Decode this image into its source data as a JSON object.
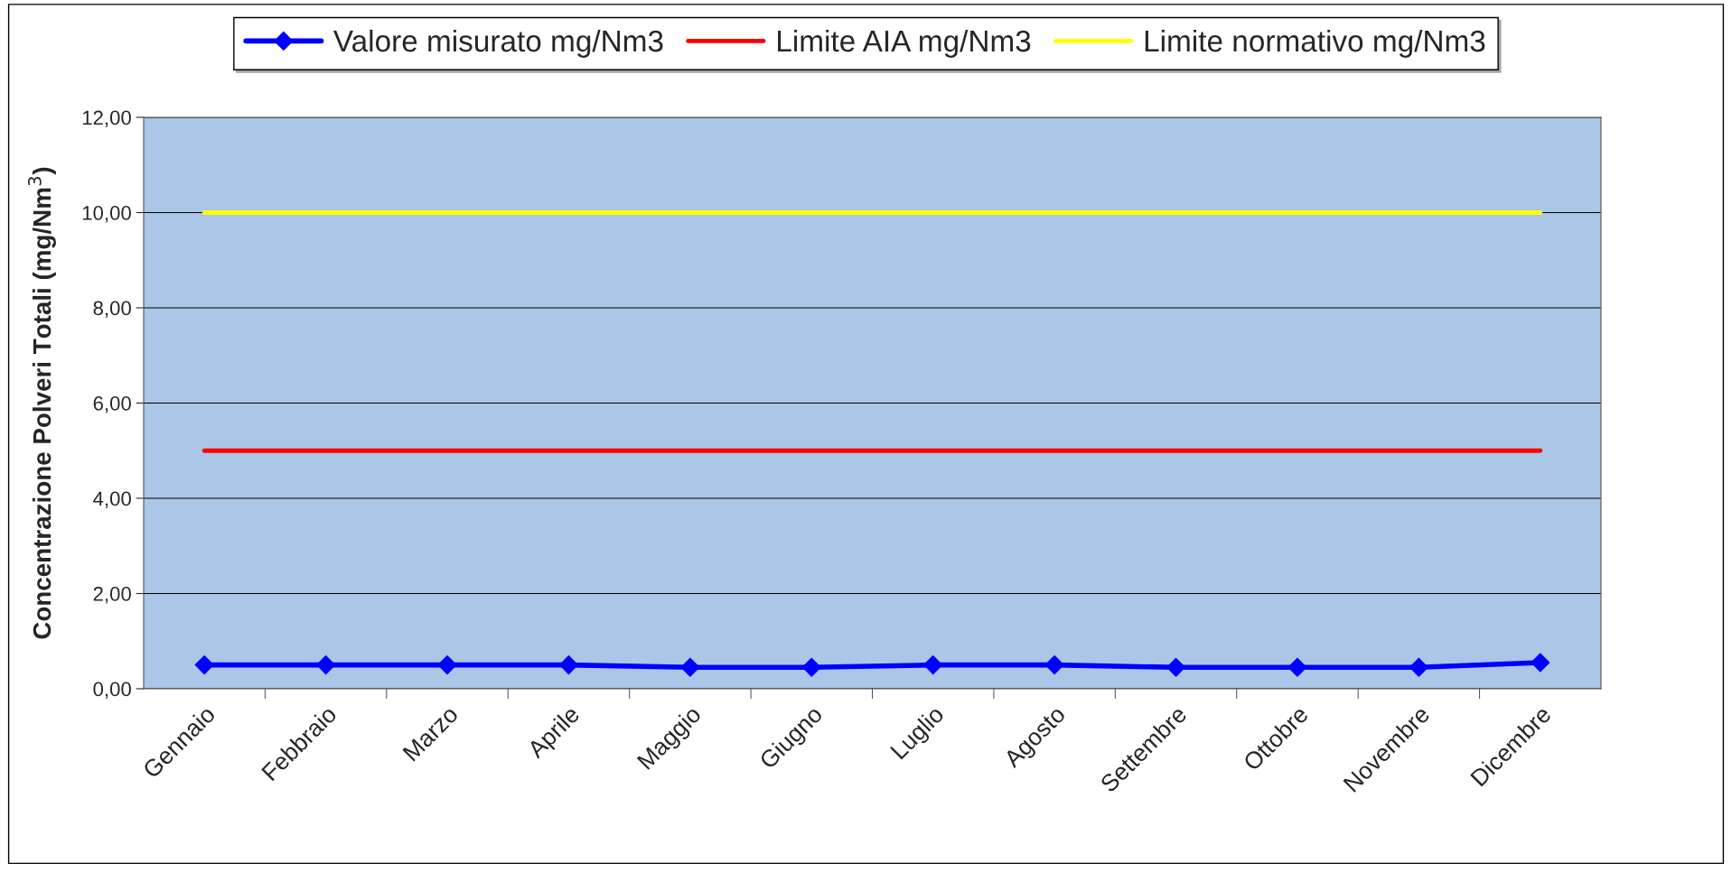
{
  "chart_data": {
    "type": "line",
    "categories": [
      "Gennaio",
      "Febbraio",
      "Marzo",
      "Aprile",
      "Maggio",
      "Giugno",
      "Luglio",
      "Agosto",
      "Settembre",
      "Ottobre",
      "Novembre",
      "Dicembre"
    ],
    "ylabel": "Concentrazione Polveri Totali (mg/Nm$^{3}$)",
    "series": [
      {
        "name": "Valore misurato mg/Nm3",
        "color": "#0000ff",
        "marker": "diamond",
        "values": [
          0.5,
          0.5,
          0.5,
          0.5,
          0.45,
          0.45,
          0.5,
          0.5,
          0.45,
          0.45,
          0.45,
          0.55
        ]
      },
      {
        "name": "Limite AIA mg/Nm3",
        "color": "#ff0000",
        "marker": "none",
        "values": [
          5,
          5,
          5,
          5,
          5,
          5,
          5,
          5,
          5,
          5,
          5,
          5
        ]
      },
      {
        "name": "Limite normativo mg/Nm3",
        "color": "#ffff00",
        "marker": "none",
        "values": [
          10,
          10,
          10,
          10,
          10,
          10,
          10,
          10,
          10,
          10,
          10,
          10
        ]
      }
    ],
    "ylim": [
      0,
      12
    ],
    "yticks": [
      {
        "value": 0,
        "label": "0,00"
      },
      {
        "value": 2,
        "label": "2,00"
      },
      {
        "value": 4,
        "label": "4,00"
      },
      {
        "value": 6,
        "label": "6,00"
      },
      {
        "value": 8,
        "label": "8,00"
      },
      {
        "value": 10,
        "label": "10,00"
      },
      {
        "value": 12,
        "label": "12,00"
      }
    ],
    "grid": "y",
    "legend": "top",
    "line_style": "solid"
  }
}
